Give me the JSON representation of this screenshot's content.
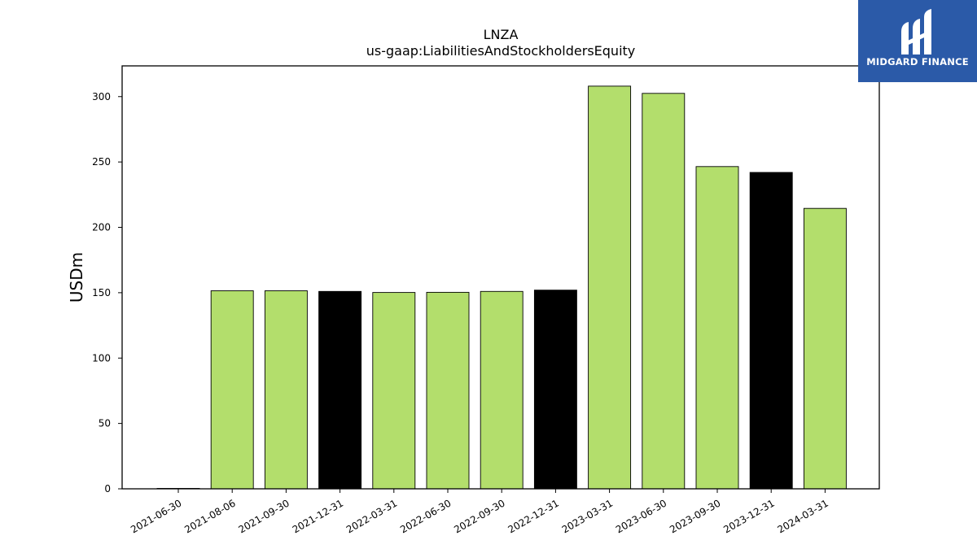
{
  "chart_data": {
    "type": "bar",
    "title": "LNZA",
    "subtitle": "us-gaap:LiabilitiesAndStockholdersEquity",
    "ylabel": "USDm",
    "xlabel": "",
    "categories": [
      "2021-06-30",
      "2021-08-06",
      "2021-09-30",
      "2021-12-31",
      "2022-03-31",
      "2022-06-30",
      "2022-09-30",
      "2022-12-31",
      "2023-03-31",
      "2023-06-30",
      "2023-09-30",
      "2023-12-31",
      "2024-03-31"
    ],
    "values": [
      0.3,
      151.5,
      151.5,
      151.0,
      150.2,
      150.3,
      151.0,
      152.0,
      308.0,
      302.5,
      246.5,
      242.0,
      214.5
    ],
    "bar_colors": [
      "#b3de6c",
      "#b3de6c",
      "#b3de6c",
      "#000000",
      "#b3de6c",
      "#b3de6c",
      "#b3de6c",
      "#000000",
      "#b3de6c",
      "#b3de6c",
      "#b3de6c",
      "#000000",
      "#b3de6c"
    ],
    "yticks": [
      0,
      50,
      100,
      150,
      200,
      250,
      300
    ],
    "ylim": [
      0,
      323.5
    ],
    "grid": false,
    "legend": "none"
  },
  "logo": {
    "text": "MIDGARD FINANCE",
    "background": "#2b5aa8"
  }
}
